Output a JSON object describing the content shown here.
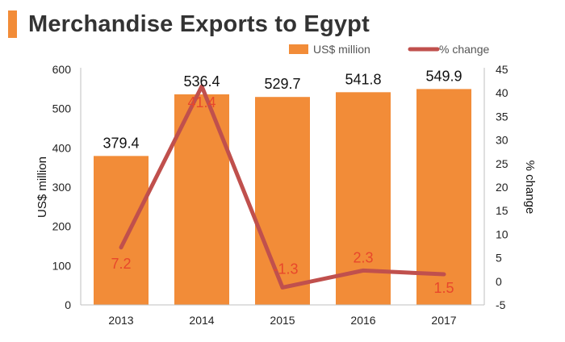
{
  "title": "Merchandise Exports to Egypt",
  "colors": {
    "bar": "#F28C38",
    "line": "#C0504D",
    "pct_label": "#E8472B",
    "accent": "#F28C38"
  },
  "chart_data": {
    "type": "bar",
    "categories": [
      "2013",
      "2014",
      "2015",
      "2016",
      "2017"
    ],
    "series": [
      {
        "name": "US$ million",
        "type": "bar",
        "axis": "left",
        "values": [
          379.4,
          536.4,
          529.7,
          541.8,
          549.9
        ],
        "labels": [
          "379.4",
          "536.4",
          "529.7",
          "541.8",
          "549.9"
        ]
      },
      {
        "name": "% change",
        "type": "line",
        "axis": "right",
        "values": [
          7.2,
          41.4,
          -1.3,
          2.3,
          1.5
        ],
        "labels": [
          "7.2",
          "41.4",
          "-1.3",
          "2.3",
          "1.5"
        ]
      }
    ],
    "ylabel": "US$ million",
    "y2label": "% change",
    "ylim": [
      0,
      600
    ],
    "yticks": [
      "0",
      "100",
      "200",
      "300",
      "400",
      "500",
      "600"
    ],
    "y2lim": [
      -5,
      45
    ],
    "y2ticks": [
      "-5",
      "0",
      "5",
      "10",
      "15",
      "20",
      "25",
      "30",
      "35",
      "40",
      "45"
    ],
    "grid": false,
    "legend": "top-right"
  }
}
